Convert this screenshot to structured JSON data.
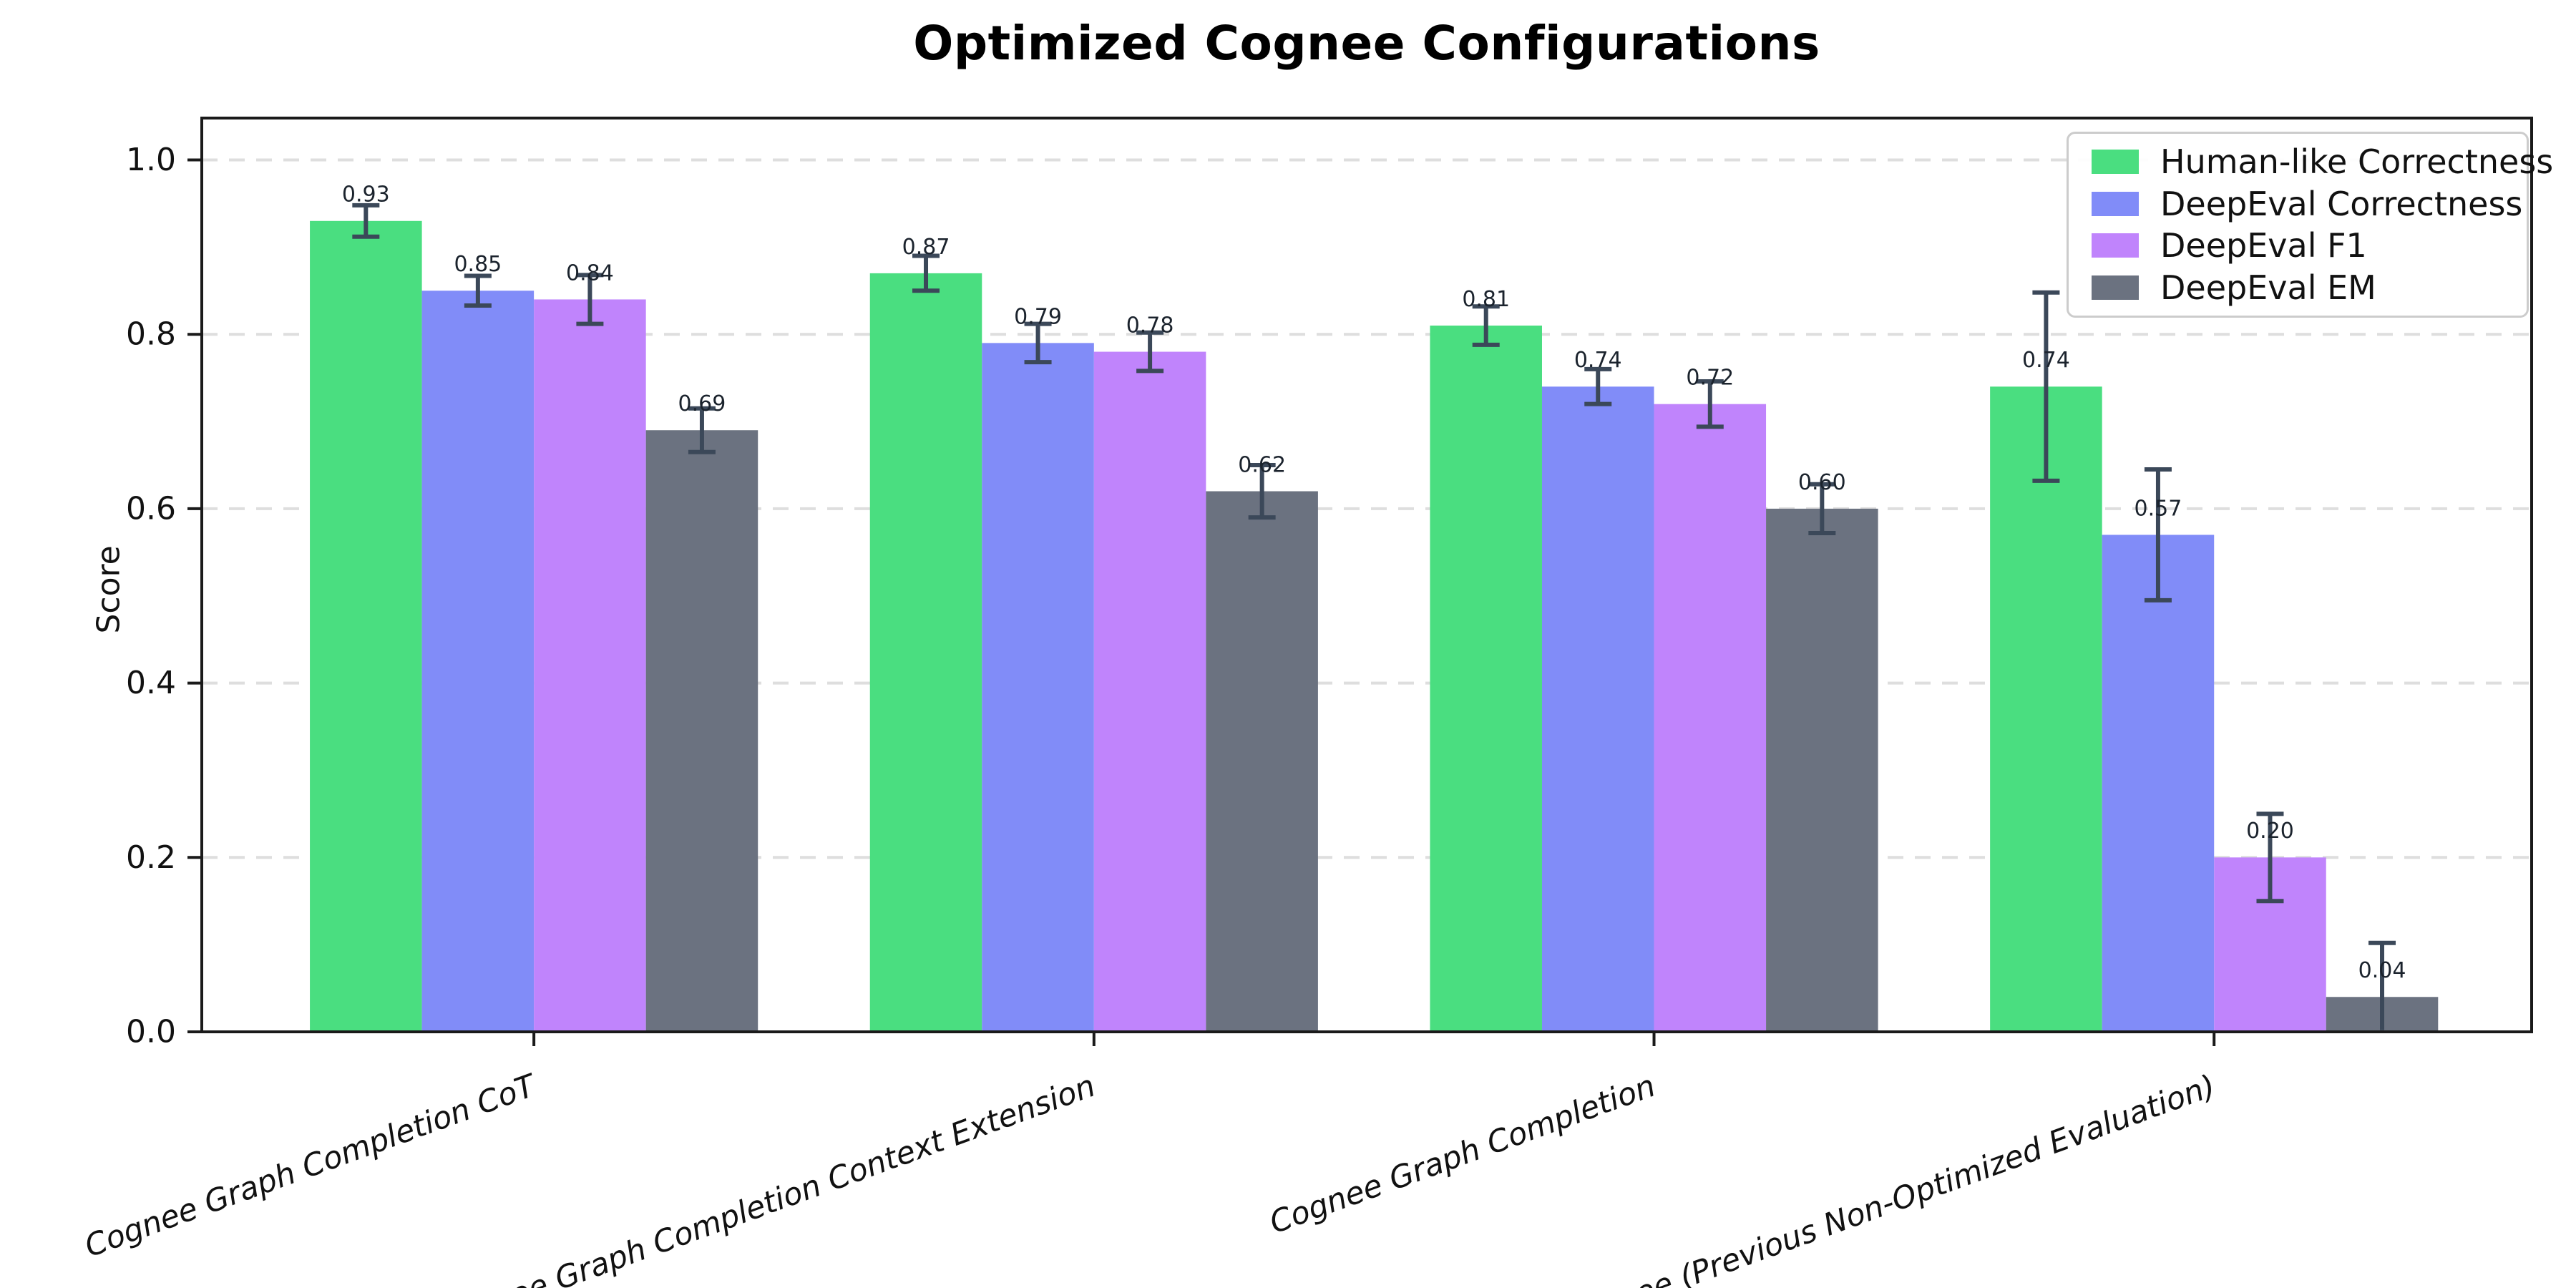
{
  "chart_data": {
    "type": "bar",
    "title": "Optimized Cognee Configurations",
    "ylabel": "Score",
    "categories": [
      "Cognee Graph Completion CoT",
      "Cognee Graph Completion Context Extension",
      "Cognee Graph Completion",
      "Cognee (Previous Non-Optimized Evaluation)"
    ],
    "series": [
      {
        "name": "Human-like Correctness",
        "color": "#4ade80",
        "values": [
          0.93,
          0.87,
          0.81,
          0.74
        ],
        "errors": [
          0.018,
          0.02,
          0.022,
          0.108
        ]
      },
      {
        "name": "DeepEval Correctness",
        "color": "#818cf8",
        "values": [
          0.85,
          0.79,
          0.74,
          0.57
        ],
        "errors": [
          0.017,
          0.022,
          0.02,
          0.075
        ]
      },
      {
        "name": "DeepEval F1",
        "color": "#c084fc",
        "values": [
          0.84,
          0.78,
          0.72,
          0.2
        ],
        "errors": [
          0.028,
          0.022,
          0.026,
          0.05
        ]
      },
      {
        "name": "DeepEval EM",
        "color": "#6b7280",
        "values": [
          0.69,
          0.62,
          0.6,
          0.04
        ],
        "errors": [
          0.025,
          0.03,
          0.028,
          0.062
        ]
      }
    ],
    "ylim": [
      0,
      1.048
    ],
    "yticks": [
      0.0,
      0.2,
      0.4,
      0.6,
      0.8,
      1.0
    ],
    "grid": "horizontal-dashed",
    "legend_position": "upper right",
    "value_label_format": "2dp"
  },
  "style": {
    "error_bar_color": "#3b4859",
    "value_label_color": "#1b232d",
    "grid_color": "#dedede",
    "spine_color": "#1a1a1a",
    "tick_label_color": "#111111",
    "legend_border_color": "#cccccc"
  }
}
